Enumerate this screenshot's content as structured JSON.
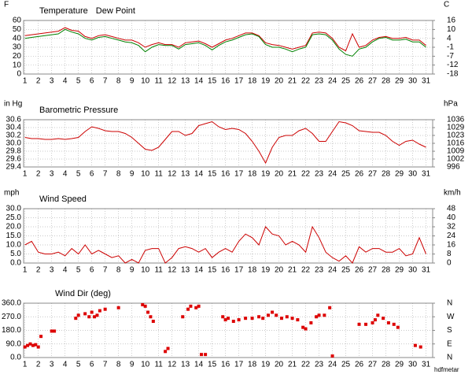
{
  "chart_data": [
    {
      "type": "line",
      "ylabel": "F",
      "y2label": "C",
      "x": [
        1,
        1.5,
        2,
        2.5,
        3,
        3.5,
        4,
        4.5,
        5,
        5.5,
        6,
        6.5,
        7,
        7.5,
        8,
        8.5,
        9,
        9.5,
        10,
        10.5,
        11,
        11.5,
        12,
        12.5,
        13,
        13.5,
        14,
        14.5,
        15,
        15.5,
        16,
        16.5,
        17,
        17.5,
        18,
        18.5,
        19,
        19.5,
        20,
        20.5,
        21,
        21.5,
        22,
        22.5,
        23,
        23.5,
        24,
        24.5,
        25,
        25.5,
        26,
        26.5,
        27,
        27.5,
        28,
        28.5,
        29,
        29.5,
        30,
        30.5,
        31
      ],
      "series": [
        {
          "name": "Temperature",
          "color": "#cc0000",
          "values": [
            43,
            44,
            45,
            46,
            47,
            48,
            52,
            49,
            48,
            42,
            40,
            43,
            44,
            42,
            40,
            38,
            38,
            35,
            30,
            33,
            35,
            33,
            33,
            30,
            35,
            36,
            37,
            34,
            30,
            34,
            38,
            40,
            43,
            46,
            46,
            43,
            35,
            33,
            32,
            30,
            28,
            30,
            32,
            46,
            47,
            46,
            40,
            30,
            26,
            45,
            30,
            32,
            38,
            41,
            42,
            40,
            40,
            41,
            38,
            38,
            32
          ]
        },
        {
          "name": "Dew Point",
          "color": "#008000",
          "values": [
            40,
            41,
            42,
            43,
            44,
            45,
            50,
            47,
            45,
            40,
            38,
            41,
            42,
            40,
            38,
            36,
            35,
            32,
            25,
            30,
            33,
            32,
            32,
            28,
            33,
            34,
            35,
            32,
            27,
            32,
            36,
            38,
            41,
            44,
            45,
            42,
            33,
            30,
            30,
            28,
            25,
            28,
            30,
            44,
            45,
            44,
            38,
            28,
            22,
            20,
            28,
            30,
            36,
            40,
            41,
            38,
            38,
            39,
            36,
            36,
            30
          ]
        }
      ],
      "xlim": [
        0.9,
        31.5
      ],
      "xticks": [
        1,
        2,
        3,
        4,
        5,
        6,
        7,
        8,
        9,
        10,
        11,
        12,
        13,
        14,
        15,
        16,
        17,
        18,
        19,
        20,
        21,
        22,
        23,
        24,
        25,
        26,
        27,
        28,
        29,
        30,
        31
      ],
      "ylim": [
        0,
        60
      ],
      "yticks": [
        0,
        10,
        20,
        30,
        40,
        50,
        60
      ],
      "y2lim": [
        -17.8,
        15.6
      ],
      "y2ticks": [
        {
          "value": -17.8,
          "label": "-18"
        },
        {
          "value": -12.2,
          "label": "-12"
        },
        {
          "value": -6.7,
          "label": "-7"
        },
        {
          "value": -1.1,
          "label": "-1"
        },
        {
          "value": 4.4,
          "label": "4"
        },
        {
          "value": 10,
          "label": "10"
        },
        {
          "value": 15.6,
          "label": "16"
        }
      ],
      "grid": true
    },
    {
      "type": "line",
      "title": "Barometric Pressure",
      "ylabel": "in Hg",
      "y2label": "hPa",
      "x": [
        1,
        1.5,
        2,
        2.5,
        3,
        3.5,
        4,
        4.5,
        5,
        5.5,
        6,
        6.5,
        7,
        7.5,
        8,
        8.5,
        9,
        9.5,
        10,
        10.5,
        11,
        11.5,
        12,
        12.5,
        13,
        13.5,
        14,
        14.5,
        15,
        15.5,
        16,
        16.5,
        17,
        17.5,
        18,
        18.5,
        19,
        19.5,
        20,
        20.5,
        21,
        21.5,
        22,
        22.5,
        23,
        23.5,
        24,
        24.5,
        25,
        25.5,
        26,
        26.5,
        27,
        27.5,
        28,
        28.5,
        29,
        29.5,
        30,
        30.5,
        31
      ],
      "series": [
        {
          "name": "Barometric Pressure",
          "color": "#cc0000",
          "values": [
            30.15,
            30.12,
            30.12,
            30.1,
            30.1,
            30.12,
            30.1,
            30.12,
            30.15,
            30.3,
            30.42,
            30.38,
            30.32,
            30.3,
            30.3,
            30.25,
            30.15,
            30.0,
            29.85,
            29.82,
            29.9,
            30.1,
            30.3,
            30.3,
            30.2,
            30.25,
            30.45,
            30.5,
            30.55,
            30.42,
            30.35,
            30.38,
            30.35,
            30.25,
            30.05,
            29.8,
            29.5,
            29.9,
            30.15,
            30.2,
            30.2,
            30.32,
            30.38,
            30.25,
            30.05,
            30.05,
            30.3,
            30.55,
            30.52,
            30.45,
            30.32,
            30.3,
            30.28,
            30.28,
            30.2,
            30.05,
            29.95,
            30.05,
            30.08,
            29.98,
            29.9
          ]
        }
      ],
      "xlim": [
        0.9,
        31.5
      ],
      "xticks": [
        1,
        2,
        3,
        4,
        5,
        6,
        7,
        8,
        9,
        10,
        11,
        12,
        13,
        14,
        15,
        16,
        17,
        18,
        19,
        20,
        21,
        22,
        23,
        24,
        25,
        26,
        27,
        28,
        29,
        30,
        31
      ],
      "ylim": [
        29.4,
        30.6
      ],
      "yticks": [
        29.4,
        29.6,
        29.8,
        {
          "value": 30,
          "label": "30.0"
        },
        30.2,
        30.4,
        30.6
      ],
      "y2lim": [
        995.6,
        1036.2
      ],
      "y2ticks": [
        {
          "value": 995.6,
          "label": "996"
        },
        {
          "value": 1002.4,
          "label": "1002"
        },
        {
          "value": 1009.1,
          "label": "1009"
        },
        {
          "value": 1015.9,
          "label": "1016"
        },
        {
          "value": 1022.7,
          "label": "1023"
        },
        {
          "value": 1029.4,
          "label": "1029"
        },
        {
          "value": 1036.2,
          "label": "1036"
        }
      ],
      "grid": true
    },
    {
      "type": "line",
      "title": "Wind Speed",
      "ylabel": "mph",
      "y2label": "km/h",
      "x": [
        1,
        1.5,
        2,
        2.5,
        3,
        3.5,
        4,
        4.5,
        5,
        5.5,
        6,
        6.5,
        7,
        7.5,
        8,
        8.5,
        9,
        9.5,
        10,
        10.5,
        11,
        11.5,
        12,
        12.5,
        13,
        13.5,
        14,
        14.5,
        15,
        15.5,
        16,
        16.5,
        17,
        17.5,
        18,
        18.5,
        19,
        19.5,
        20,
        20.5,
        21,
        21.5,
        22,
        22.5,
        23,
        23.5,
        24,
        24.5,
        25,
        25.5,
        26,
        26.5,
        27,
        27.5,
        28,
        28.5,
        29,
        29.5,
        30,
        30.5,
        31
      ],
      "series": [
        {
          "name": "Wind Speed",
          "color": "#cc0000",
          "values": [
            10,
            12,
            6,
            5,
            5,
            6,
            4,
            8,
            5,
            10,
            5,
            7,
            5,
            3,
            4,
            0,
            2,
            0,
            7,
            8,
            8,
            0,
            3,
            8,
            9,
            8,
            6,
            8,
            3,
            6,
            8,
            6,
            12,
            16,
            14,
            10,
            20,
            16,
            15,
            10,
            12,
            10,
            6,
            20,
            14,
            6,
            3,
            1,
            4,
            0,
            9,
            6,
            8,
            8,
            6,
            6,
            8,
            4,
            5,
            14,
            5
          ]
        }
      ],
      "xlim": [
        0.9,
        31.5
      ],
      "xticks": [
        1,
        2,
        3,
        4,
        5,
        6,
        7,
        8,
        9,
        10,
        11,
        12,
        13,
        14,
        15,
        16,
        17,
        18,
        19,
        20,
        21,
        22,
        23,
        24,
        25,
        26,
        27,
        28,
        29,
        30,
        31
      ],
      "ylim": [
        0,
        30
      ],
      "yticks": [
        {
          "value": 0,
          "label": "0.0"
        },
        {
          "value": 5,
          "label": "5.0"
        },
        {
          "value": 10,
          "label": "10.0"
        },
        {
          "value": 15,
          "label": "15.0"
        },
        {
          "value": 20,
          "label": "20.0"
        },
        {
          "value": 25,
          "label": "25.0"
        },
        {
          "value": 30,
          "label": "30.0"
        }
      ],
      "y2lim": [
        0,
        48.3
      ],
      "y2ticks": [
        0,
        {
          "value": 8.0,
          "label": "8"
        },
        {
          "value": 16.1,
          "label": "16"
        },
        {
          "value": 24.1,
          "label": "24"
        },
        {
          "value": 32.2,
          "label": "32"
        },
        {
          "value": 40.2,
          "label": "40"
        },
        {
          "value": 48.3,
          "label": "48"
        }
      ],
      "grid": true
    },
    {
      "type": "scatter",
      "title": "Wind Dir (deg)",
      "annotation": "hdfmetar",
      "color": "#dd0000",
      "x": [
        1.0,
        1.2,
        1.4,
        1.6,
        1.8,
        2.0,
        2.2,
        3.0,
        3.2,
        4.8,
        5.0,
        5.5,
        5.8,
        6.0,
        6.2,
        6.4,
        6.6,
        7.0,
        8.0,
        9.8,
        10.0,
        10.2,
        10.4,
        10.6,
        11.5,
        11.7,
        12.8,
        13.2,
        13.4,
        13.8,
        14.0,
        14.2,
        14.5,
        15.8,
        16.0,
        16.2,
        16.6,
        17.0,
        17.5,
        18.0,
        18.5,
        18.8,
        19.2,
        19.5,
        19.8,
        20.2,
        20.6,
        21.0,
        21.4,
        21.8,
        22.0,
        22.4,
        22.8,
        23.0,
        23.4,
        23.8,
        24.0,
        26.0,
        26.5,
        27.0,
        27.2,
        27.4,
        27.8,
        28.2,
        28.6,
        28.9,
        30.2,
        30.6
      ],
      "values": [
        70,
        80,
        90,
        80,
        85,
        70,
        140,
        175,
        175,
        260,
        280,
        290,
        270,
        300,
        270,
        280,
        310,
        320,
        330,
        350,
        340,
        300,
        270,
        240,
        40,
        60,
        270,
        320,
        340,
        330,
        340,
        20,
        20,
        270,
        250,
        260,
        240,
        250,
        260,
        260,
        270,
        260,
        280,
        300,
        280,
        260,
        270,
        260,
        250,
        200,
        190,
        230,
        270,
        280,
        280,
        330,
        10,
        220,
        220,
        230,
        250,
        280,
        260,
        230,
        220,
        200,
        80,
        70
      ],
      "xlim": [
        0.9,
        31.5
      ],
      "xticks": [
        1,
        2,
        3,
        4,
        5,
        6,
        7,
        8,
        9,
        10,
        11,
        12,
        13,
        14,
        15,
        16,
        17,
        18,
        19,
        20,
        21,
        22,
        23,
        24,
        25,
        26,
        27,
        28,
        29,
        30,
        31
      ],
      "ylim": [
        0,
        360
      ],
      "yticks": [
        {
          "value": 0,
          "label": "0.0"
        },
        {
          "value": 90,
          "label": "90.0"
        },
        {
          "value": 180,
          "label": "180.0"
        },
        {
          "value": 270,
          "label": "270.0"
        },
        {
          "value": 360,
          "label": "360.0"
        }
      ],
      "y2lim": [
        0,
        360
      ],
      "y2ticks": [
        {
          "value": 0,
          "label": "N"
        },
        {
          "value": 90,
          "label": "E"
        },
        {
          "value": 180,
          "label": "S"
        },
        {
          "value": 270,
          "label": "W"
        },
        {
          "value": 360,
          "label": "N"
        }
      ],
      "grid": true
    }
  ]
}
